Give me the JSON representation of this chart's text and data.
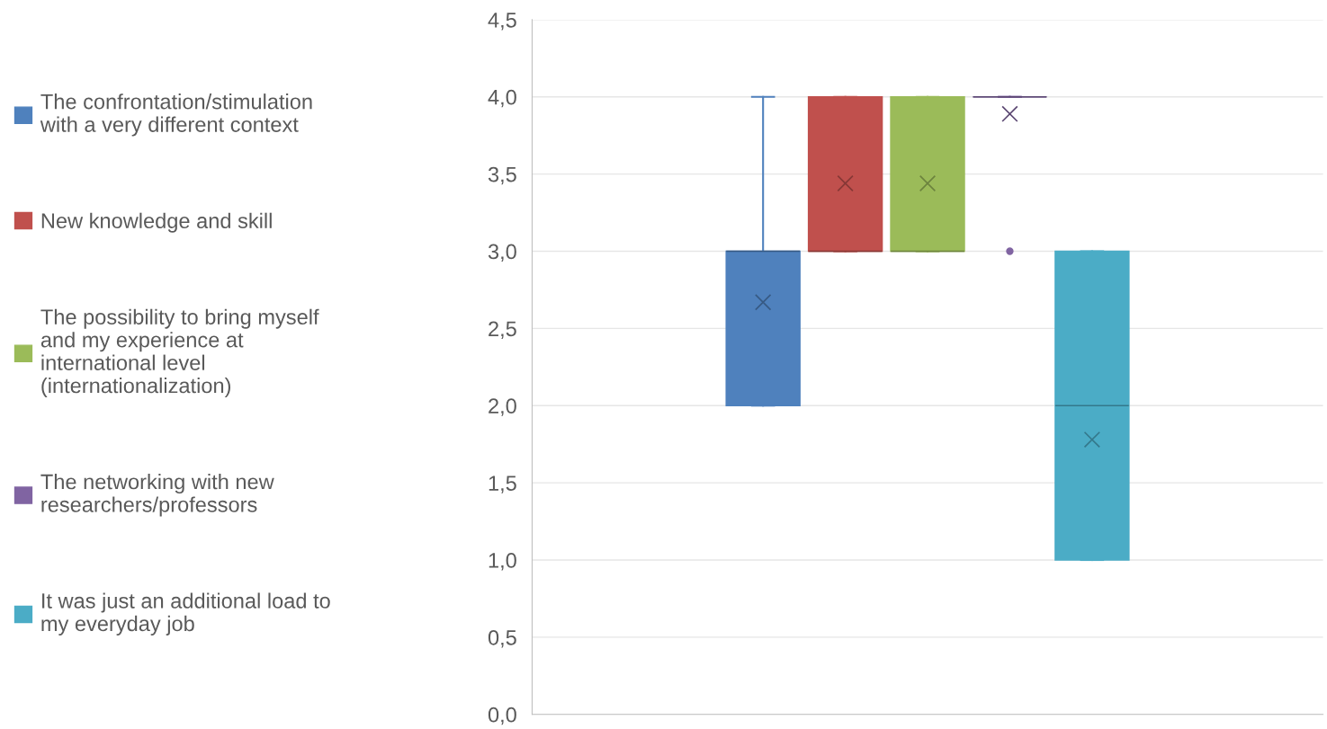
{
  "chart_data": {
    "type": "box",
    "categories": [
      null
    ],
    "series": [
      {
        "name": "The confrontation/stimulation\nwith a very different context",
        "color": "#4f81bd",
        "boxes": [
          {
            "low": 2,
            "q1": 2,
            "median": 3,
            "q3": 3,
            "high": 4,
            "mean": 2.67
          }
        ]
      },
      {
        "name": "New knowledge and skill",
        "color": "#c0504d",
        "boxes": [
          {
            "low": 3,
            "q1": 3,
            "median": 3,
            "q3": 4,
            "high": 4,
            "mean": 3.44
          }
        ]
      },
      {
        "name": "The possibility to bring myself\nand my experience at\ninternational level\n(internationalization)",
        "color": "#9bbb59",
        "boxes": [
          {
            "low": 3,
            "q1": 3,
            "median": 3,
            "q3": 4,
            "high": 4,
            "mean": 3.44
          }
        ]
      },
      {
        "name": "The networking with new\nresearchers/professors",
        "color": "#8064a2",
        "boxes": [
          {
            "low": 4,
            "q1": 4,
            "median": 4,
            "q3": 4,
            "high": 4,
            "mean": 3.89,
            "outliers": [
              3
            ]
          }
        ]
      },
      {
        "name": "It was just an additional load to\nmy everyday job",
        "color": "#4bacc6",
        "boxes": [
          {
            "low": 1,
            "q1": 1,
            "median": 2,
            "q3": 3,
            "high": 3,
            "mean": 1.78
          }
        ]
      }
    ],
    "ylim": [
      0,
      4.5
    ],
    "yticks": [
      {
        "value": 0,
        "label": "0,0"
      },
      {
        "value": 0.5,
        "label": "0,5"
      },
      {
        "value": 1,
        "label": "1,0"
      },
      {
        "value": 1.5,
        "label": "1,5"
      },
      {
        "value": 2,
        "label": "2,0"
      },
      {
        "value": 2.5,
        "label": "2,5"
      },
      {
        "value": 3,
        "label": "3,0"
      },
      {
        "value": 3.5,
        "label": "3,5"
      },
      {
        "value": 4,
        "label": "4,0"
      },
      {
        "value": 4.5,
        "label": "4,5"
      }
    ],
    "grid": "y",
    "legend": "left",
    "marker": "cross"
  }
}
